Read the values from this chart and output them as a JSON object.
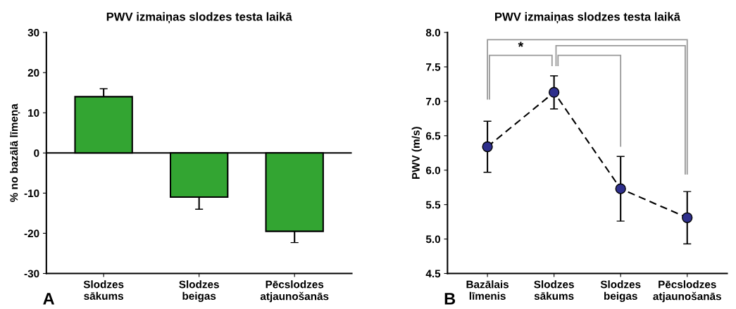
{
  "chart_data": [
    {
      "type": "bar",
      "title": "PWV izmaiņas slodzes testa laikā",
      "ylabel": "% no bazālā līmeņa",
      "categories": [
        "Slodzes\nsākums",
        "Slodzes\nbeigas",
        "Pēcslodzes\natjaunošanās"
      ],
      "values": [
        14,
        -11,
        -19.5
      ],
      "errors": [
        2,
        3,
        2.8
      ],
      "color": "#33a532",
      "ylim": [
        -30,
        30
      ],
      "yticks": [
        -30,
        -20,
        -10,
        0,
        10,
        20,
        30
      ],
      "ref_lines": [
        {
          "axis": "y",
          "value": 0,
          "color": "#000000"
        }
      ],
      "annotations": [
        "A"
      ],
      "grid": false,
      "legend": false
    },
    {
      "type": "line",
      "title": "PWV izmaiņas slodzes testa laikā",
      "ylabel": "PWV (m/s)",
      "categories": [
        "Bazālais\nlīmenis",
        "Slodzes\nsākums",
        "Slodzes\nbeigas",
        "Pēcslodzes\natjaunošanās"
      ],
      "values": [
        6.34,
        7.13,
        5.73,
        5.31
      ],
      "errors": [
        0.37,
        0.24,
        0.47,
        0.38
      ],
      "color": "#2e2f8c",
      "marker": "circle",
      "line_style": "dashed",
      "ylim": [
        4.5,
        8.0
      ],
      "yticks": [
        {
          "value": 4.5,
          "label": "4.5"
        },
        {
          "value": 5.0,
          "label": "5.0"
        },
        {
          "value": 5.5,
          "label": "5.5"
        },
        {
          "value": 6.0,
          "label": "6.0"
        },
        {
          "value": 6.5,
          "label": "6.5"
        },
        {
          "value": 7.0,
          "label": "7.0"
        },
        {
          "value": 7.5,
          "label": "7.5"
        },
        {
          "value": 8.0,
          "label": "8.0"
        }
      ],
      "annotations": [
        "B",
        "*"
      ],
      "grid": false,
      "legend": false
    }
  ]
}
